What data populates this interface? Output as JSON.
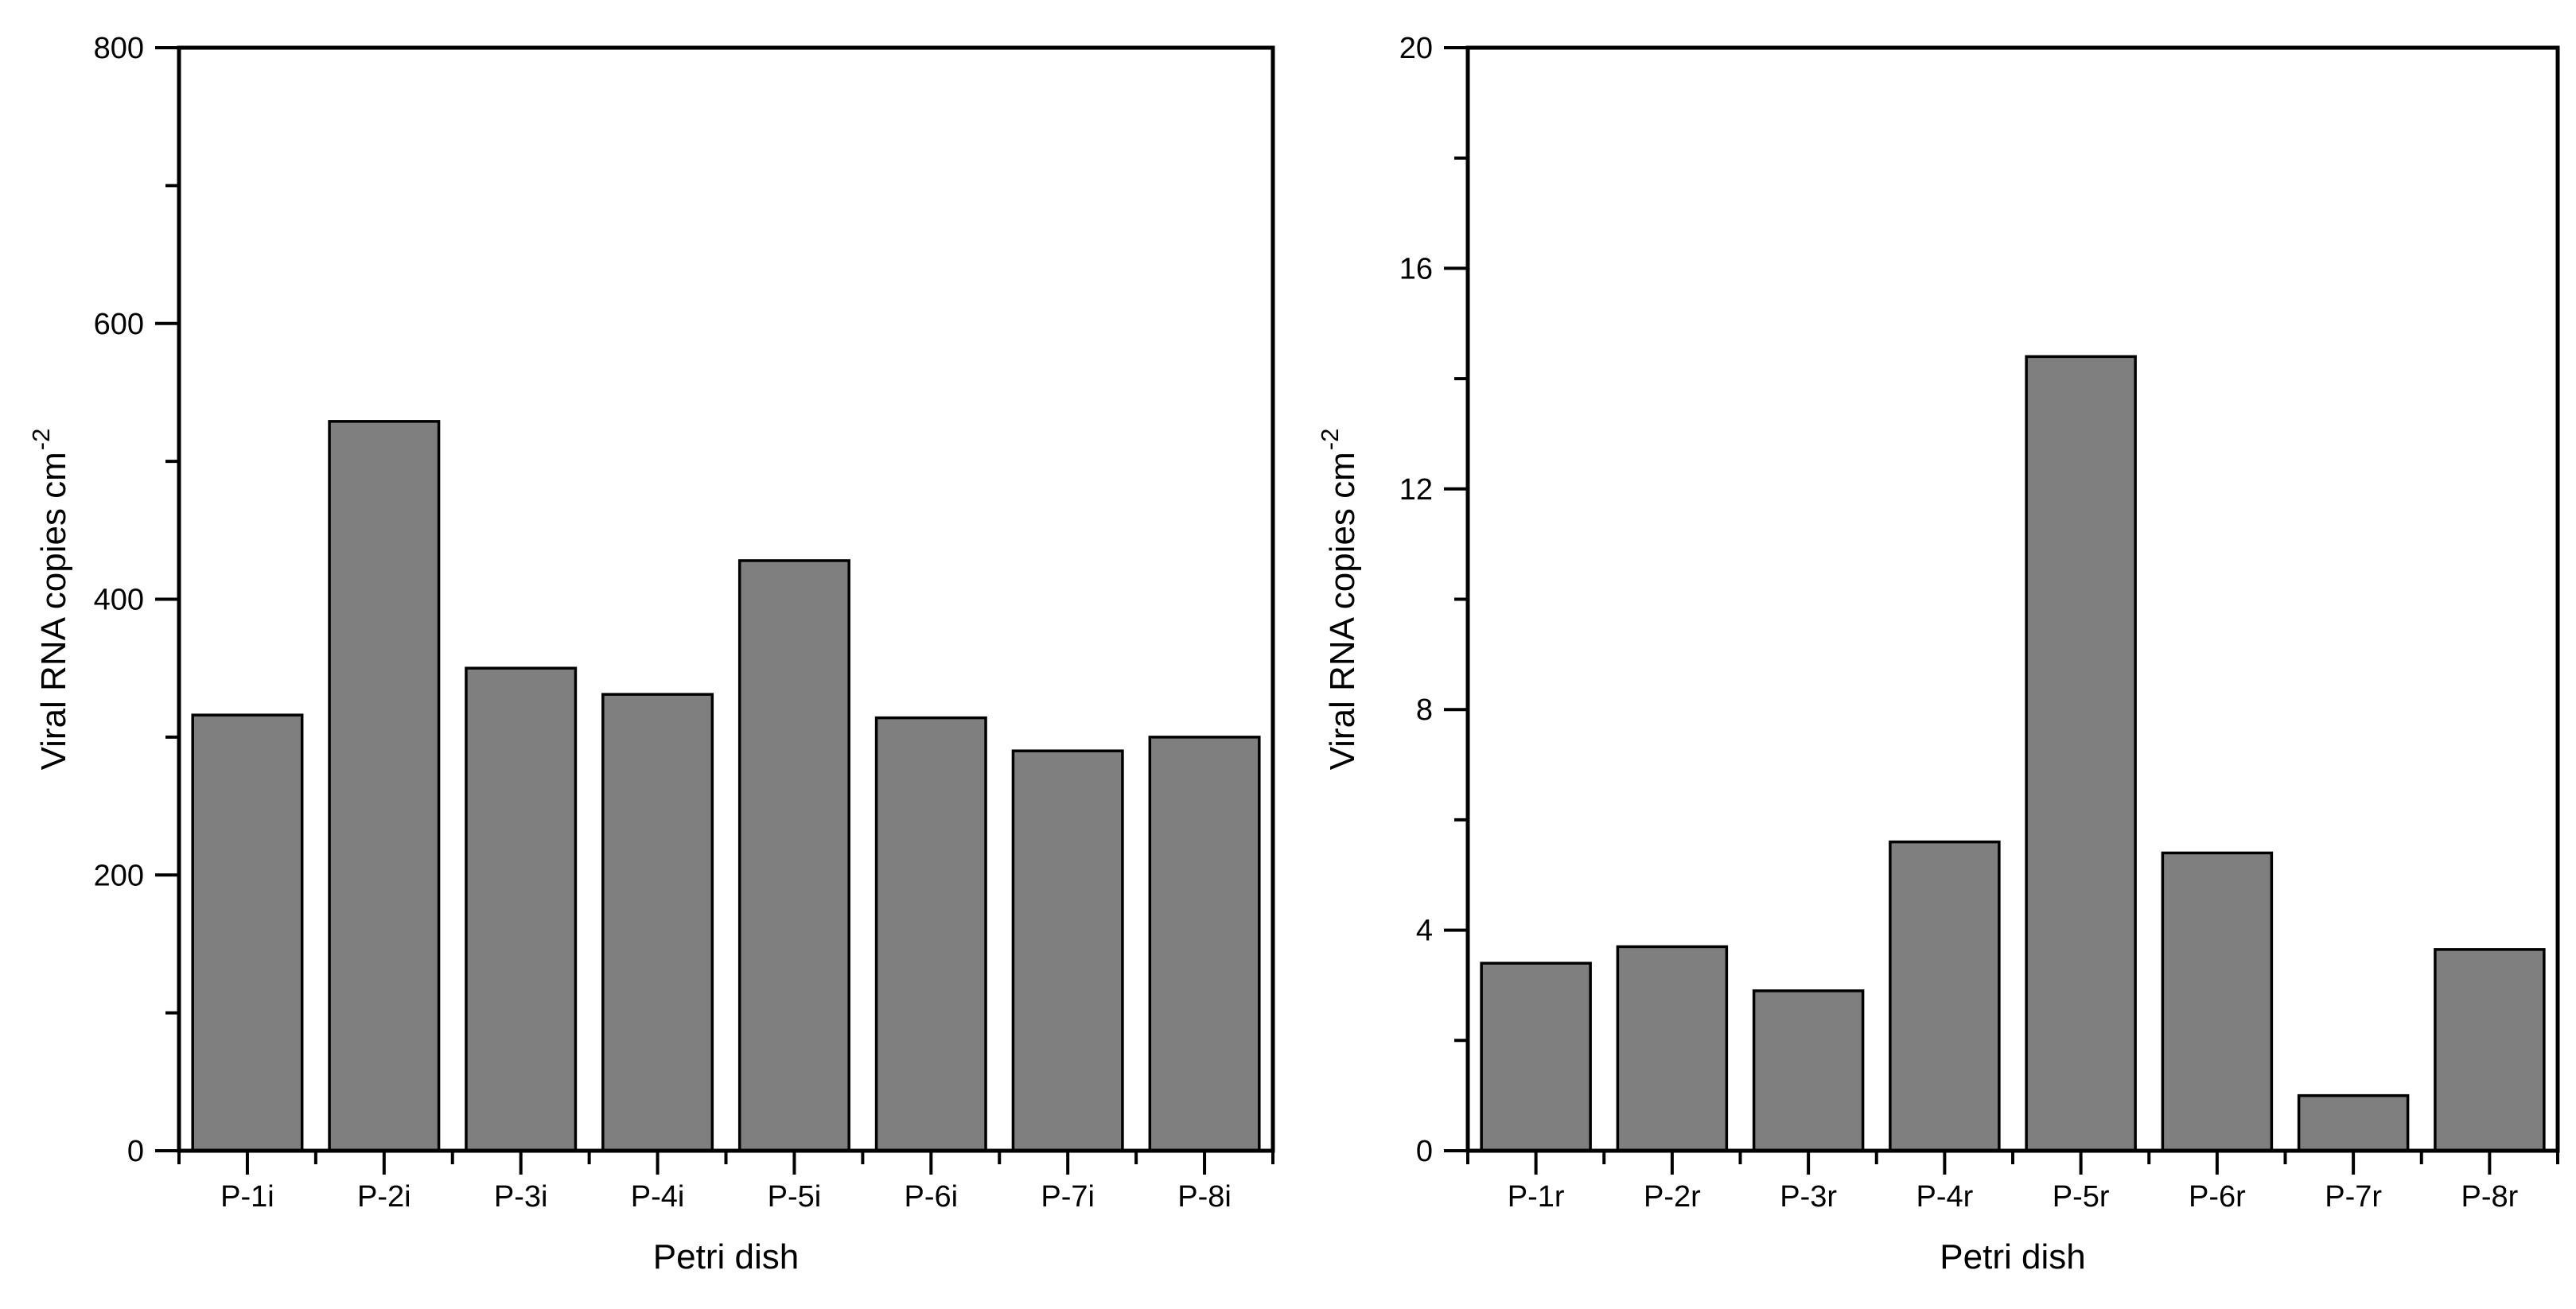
{
  "figure": {
    "background": "#ffffff",
    "bar_fill": "#7f7f7f",
    "bar_stroke": "#000000",
    "axis_color": "#000000",
    "text_color": "#000000"
  },
  "chart_data": [
    {
      "type": "bar",
      "panel": "left",
      "title": "",
      "xlabel": "Petri dish",
      "ylabel": "Viral RNA copies cm-2",
      "ylabel_base": "Viral RNA copies cm",
      "ylabel_exponent": "-2",
      "categories": [
        "P-1i",
        "P-2i",
        "P-3i",
        "P-4i",
        "P-5i",
        "P-6i",
        "P-7i",
        "P-8i"
      ],
      "values": [
        316,
        529,
        350,
        331,
        428,
        314,
        290,
        300
      ],
      "ylim": [
        0,
        800
      ],
      "ytick_major": [
        0,
        200,
        400,
        600,
        800
      ],
      "ytick_minor": [
        100,
        300,
        500,
        700
      ],
      "grid": false,
      "legend": null
    },
    {
      "type": "bar",
      "panel": "right",
      "title": "",
      "xlabel": "Petri dish",
      "ylabel": "Viral RNA copies cm-2",
      "ylabel_base": "Viral RNA copies cm",
      "ylabel_exponent": "-2",
      "categories": [
        "P-1r",
        "P-2r",
        "P-3r",
        "P-4r",
        "P-5r",
        "P-6r",
        "P-7r",
        "P-8r"
      ],
      "values": [
        3.4,
        3.7,
        2.9,
        5.6,
        14.4,
        5.4,
        1.0,
        3.65
      ],
      "ylim": [
        0,
        20
      ],
      "ytick_major": [
        0,
        4,
        8,
        12,
        16,
        20
      ],
      "ytick_minor": [
        2,
        6,
        10,
        14,
        18
      ],
      "grid": false,
      "legend": null
    }
  ]
}
